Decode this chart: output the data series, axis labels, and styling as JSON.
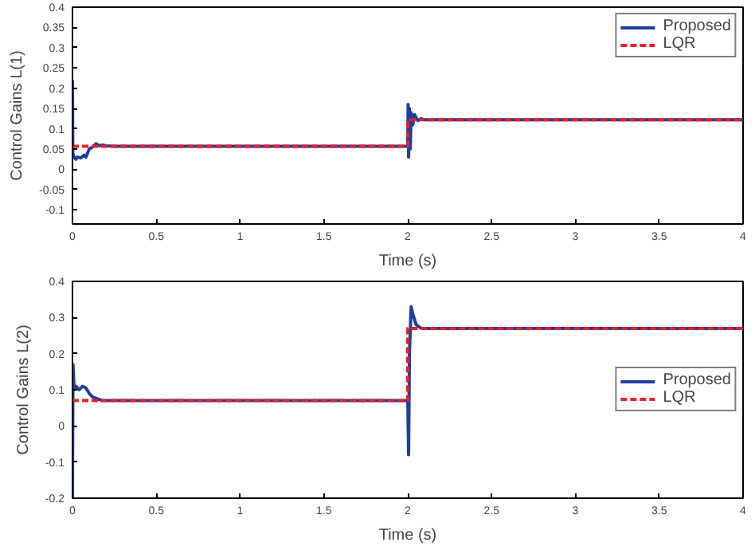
{
  "chart_data": [
    {
      "type": "line",
      "xlabel": "Time (s)",
      "ylabel": "Control Gains L(1)",
      "xlim": [
        0,
        4
      ],
      "ylim": [
        -0.135,
        0.4
      ],
      "xticks": [
        0,
        0.5,
        1,
        1.5,
        2,
        2.5,
        3,
        3.5,
        4
      ],
      "yticks": [
        -0.1,
        -0.05,
        0,
        0.05,
        0.1,
        0.15,
        0.2,
        0.25,
        0.3,
        0.35,
        0.4
      ],
      "grid": false,
      "legend": "top right",
      "series": [
        {
          "name": "Proposed",
          "color": "#1f3f9f",
          "line_style": "solid",
          "x": [
            0,
            0.002,
            0.01,
            0.02,
            0.03,
            0.05,
            0.07,
            0.08,
            0.1,
            0.12,
            0.14,
            0.16,
            0.18,
            0.2,
            0.25,
            2.0,
            2.002,
            2.005,
            2.01,
            2.015,
            2.02,
            2.03,
            2.04,
            2.06,
            2.08,
            2.1,
            4
          ],
          "values": [
            0.22,
            0.04,
            0.03,
            0.025,
            0.03,
            0.028,
            0.035,
            0.03,
            0.05,
            0.055,
            0.063,
            0.058,
            0.06,
            0.058,
            0.057,
            0.057,
            0.16,
            0.03,
            0.15,
            0.05,
            0.14,
            0.11,
            0.135,
            0.12,
            0.125,
            0.122,
            0.122
          ]
        },
        {
          "name": "LQR",
          "color": "#e8202a",
          "line_style": "dashed",
          "x": [
            0,
            2,
            2,
            4
          ],
          "values": [
            0.057,
            0.057,
            0.122,
            0.122
          ]
        }
      ]
    },
    {
      "type": "line",
      "xlabel": "Time (s)",
      "ylabel": "Control Gains L(2)",
      "xlim": [
        0,
        4
      ],
      "ylim": [
        -0.2,
        0.4
      ],
      "xticks": [
        0,
        0.5,
        1,
        1.5,
        2,
        2.5,
        3,
        3.5,
        4
      ],
      "yticks": [
        -0.2,
        -0.1,
        0,
        0.1,
        0.2,
        0.3,
        0.4
      ],
      "grid": false,
      "legend": "right",
      "series": [
        {
          "name": "Proposed",
          "color": "#1f3f9f",
          "line_style": "solid",
          "x": [
            0,
            0.003,
            0.01,
            0.02,
            0.04,
            0.06,
            0.08,
            0.1,
            0.12,
            0.15,
            0.18,
            0.2,
            0.25,
            2.0,
            2.005,
            2.01,
            2.02,
            2.03,
            2.05,
            2.08,
            2.1,
            4
          ],
          "values": [
            -0.2,
            0.17,
            0.1,
            0.11,
            0.1,
            0.11,
            0.105,
            0.09,
            0.08,
            0.075,
            0.07,
            0.07,
            0.07,
            0.07,
            -0.08,
            0.2,
            0.33,
            0.31,
            0.28,
            0.27,
            0.27,
            0.27
          ]
        },
        {
          "name": "LQR",
          "color": "#e8202a",
          "line_style": "dashed",
          "x": [
            0,
            2,
            2,
            4
          ],
          "values": [
            0.07,
            0.07,
            0.27,
            0.27
          ]
        }
      ]
    }
  ]
}
